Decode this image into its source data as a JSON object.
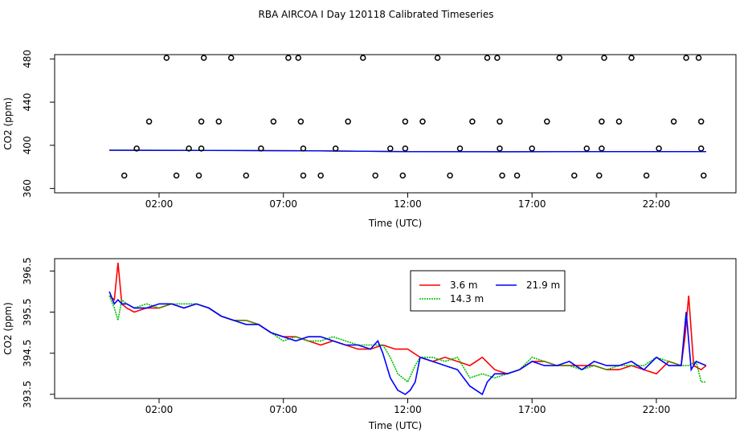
{
  "title": "RBA AIRCOA I  Day 120118  Calibrated Timeseries",
  "chart_data": [
    {
      "type": "scatter",
      "name": "top-panel",
      "xlabel": "Time (UTC)",
      "ylabel": "CO2 (ppm)",
      "xlim": [
        -2.2,
        25.2
      ],
      "ylim": [
        356.0,
        484.0
      ],
      "xticks": [
        2,
        7,
        12,
        17,
        22
      ],
      "xtick_labels": [
        "02:00",
        "07:00",
        "12:00",
        "17:00",
        "22:00"
      ],
      "yticks": [
        360,
        400,
        440,
        480
      ],
      "ytick_labels": [
        "360",
        "400",
        "440",
        "480"
      ],
      "points": {
        "name": "flagged points",
        "x": [
          0.6,
          1.1,
          1.6,
          2.3,
          2.7,
          3.2,
          3.6,
          3.7,
          3.7,
          3.8,
          4.4,
          4.9,
          5.5,
          6.1,
          6.6,
          7.2,
          7.6,
          7.7,
          7.8,
          7.8,
          8.5,
          9.1,
          9.6,
          10.2,
          10.7,
          11.3,
          11.8,
          11.9,
          11.9,
          12.6,
          13.2,
          13.7,
          14.1,
          14.6,
          15.2,
          15.6,
          15.7,
          15.7,
          15.8,
          16.4,
          17.0,
          17.6,
          18.1,
          18.7,
          19.2,
          19.7,
          19.8,
          19.8,
          19.9,
          20.5,
          21.0,
          21.6,
          22.1,
          22.7,
          23.2,
          23.7,
          23.8,
          23.8,
          23.9
        ],
        "y": [
          372,
          397,
          422,
          481,
          372,
          397,
          372,
          397,
          422,
          481,
          422,
          481,
          372,
          397,
          422,
          481,
          481,
          422,
          397,
          372,
          372,
          397,
          422,
          481,
          372,
          397,
          372,
          397,
          422,
          422,
          481,
          372,
          397,
          422,
          481,
          481,
          422,
          397,
          372,
          372,
          397,
          422,
          481,
          372,
          397,
          372,
          397,
          422,
          481,
          422,
          481,
          372,
          397,
          422,
          481,
          481,
          422,
          397,
          372
        ]
      },
      "series": [
        {
          "name": "3.6 m",
          "color": "#ff0000",
          "x": [
            0.0,
            4.0,
            8.0,
            12.0,
            16.0,
            20.0,
            24.0
          ],
          "values": [
            395.5,
            395.3,
            394.9,
            394.2,
            394.1,
            394.2,
            394.1
          ]
        },
        {
          "name": "14.3 m",
          "color": "#00c000",
          "x": [
            0.0,
            4.0,
            8.0,
            12.0,
            16.0,
            20.0,
            24.0
          ],
          "values": [
            395.5,
            395.3,
            394.9,
            394.2,
            394.0,
            394.2,
            394.1
          ]
        },
        {
          "name": "21.9 m",
          "color": "#0000ff",
          "x": [
            0.0,
            4.0,
            8.0,
            12.0,
            16.0,
            20.0,
            24.0
          ],
          "values": [
            395.4,
            395.2,
            394.9,
            394.1,
            394.0,
            394.2,
            394.2
          ]
        }
      ]
    },
    {
      "type": "line",
      "name": "bottom-panel",
      "xlabel": "Time (UTC)",
      "ylabel": "CO2 (ppm)",
      "xlim": [
        -2.2,
        25.2
      ],
      "ylim": [
        393.4,
        396.8
      ],
      "xticks": [
        2,
        7,
        12,
        17,
        22
      ],
      "xtick_labels": [
        "02:00",
        "07:00",
        "12:00",
        "17:00",
        "22:00"
      ],
      "yticks": [
        393.5,
        394.5,
        395.5,
        396.5
      ],
      "ytick_labels": [
        "393.5",
        "394.5",
        "395.5",
        "396.5"
      ],
      "legend": {
        "position": "top-center",
        "entries": [
          "3.6 m",
          "21.9 m",
          "14.3 m"
        ]
      },
      "series": [
        {
          "name": "3.6 m",
          "color": "#ff0000",
          "x": [
            0.0,
            0.2,
            0.35,
            0.5,
            0.7,
            1.0,
            1.5,
            2.0,
            2.5,
            3.0,
            3.5,
            4.0,
            4.5,
            5.0,
            5.5,
            6.0,
            6.5,
            7.0,
            7.5,
            8.0,
            8.5,
            9.0,
            9.5,
            10.0,
            10.5,
            11.0,
            11.5,
            12.0,
            12.5,
            13.0,
            13.5,
            14.0,
            14.5,
            15.0,
            15.5,
            16.0,
            16.5,
            17.0,
            17.5,
            18.0,
            18.5,
            19.0,
            19.5,
            20.0,
            20.5,
            21.0,
            21.5,
            22.0,
            22.5,
            23.0,
            23.15,
            23.3,
            23.5,
            23.8,
            24.0
          ],
          "values": [
            395.9,
            395.8,
            396.7,
            395.7,
            395.6,
            395.5,
            395.6,
            395.6,
            395.7,
            395.6,
            395.7,
            395.6,
            395.4,
            395.3,
            395.3,
            395.2,
            395.0,
            394.9,
            394.9,
            394.8,
            394.7,
            394.8,
            394.7,
            394.6,
            394.6,
            394.7,
            394.6,
            394.6,
            394.4,
            394.3,
            394.4,
            394.3,
            394.2,
            394.4,
            394.1,
            394.0,
            394.1,
            394.3,
            394.3,
            394.2,
            394.2,
            394.2,
            394.2,
            394.1,
            394.1,
            394.2,
            394.1,
            394.0,
            394.3,
            394.2,
            394.9,
            395.9,
            394.2,
            394.1,
            394.2
          ]
        },
        {
          "name": "14.3 m",
          "color": "#00c000",
          "x": [
            0.0,
            0.2,
            0.35,
            0.5,
            0.7,
            1.0,
            1.5,
            2.0,
            2.5,
            3.0,
            3.5,
            4.0,
            4.5,
            5.0,
            5.5,
            6.0,
            6.5,
            7.0,
            7.5,
            8.0,
            8.5,
            9.0,
            9.5,
            10.0,
            10.5,
            11.0,
            11.3,
            11.6,
            11.8,
            12.0,
            12.3,
            12.5,
            13.0,
            13.5,
            14.0,
            14.5,
            15.0,
            15.5,
            16.0,
            16.5,
            17.0,
            17.5,
            18.0,
            18.5,
            19.0,
            19.5,
            20.0,
            20.5,
            21.0,
            21.5,
            22.0,
            22.5,
            23.0,
            23.3,
            23.6,
            23.8,
            24.0
          ],
          "values": [
            395.9,
            395.6,
            395.3,
            395.8,
            395.7,
            395.6,
            395.7,
            395.6,
            395.7,
            395.7,
            395.7,
            395.6,
            395.4,
            395.3,
            395.3,
            395.2,
            395.0,
            394.8,
            394.9,
            394.8,
            394.8,
            394.9,
            394.8,
            394.7,
            394.7,
            394.7,
            394.4,
            394.0,
            393.9,
            393.8,
            394.2,
            394.4,
            394.4,
            394.3,
            394.4,
            393.9,
            394.0,
            393.9,
            394.0,
            394.1,
            394.4,
            394.3,
            394.2,
            394.2,
            394.1,
            394.2,
            394.1,
            394.2,
            394.2,
            394.2,
            394.4,
            394.3,
            394.2,
            394.2,
            394.3,
            393.8,
            393.8
          ]
        },
        {
          "name": "21.9 m",
          "color": "#0000ff",
          "x": [
            0.0,
            0.2,
            0.35,
            0.5,
            0.7,
            1.0,
            1.5,
            2.0,
            2.5,
            3.0,
            3.5,
            4.0,
            4.5,
            5.0,
            5.5,
            6.0,
            6.5,
            7.0,
            7.5,
            8.0,
            8.5,
            9.0,
            9.5,
            10.0,
            10.5,
            10.8,
            11.0,
            11.3,
            11.6,
            11.9,
            12.1,
            12.3,
            12.5,
            13.0,
            13.5,
            14.0,
            14.5,
            15.0,
            15.2,
            15.5,
            16.0,
            16.5,
            17.0,
            17.5,
            18.0,
            18.5,
            19.0,
            19.5,
            20.0,
            20.5,
            21.0,
            21.5,
            22.0,
            22.5,
            23.0,
            23.2,
            23.4,
            23.6,
            24.0
          ],
          "values": [
            396.0,
            395.7,
            395.8,
            395.7,
            395.7,
            395.6,
            395.6,
            395.7,
            395.7,
            395.6,
            395.7,
            395.6,
            395.4,
            395.3,
            395.2,
            395.2,
            395.0,
            394.9,
            394.8,
            394.9,
            394.9,
            394.8,
            394.7,
            394.7,
            394.6,
            394.8,
            394.5,
            393.9,
            393.6,
            393.5,
            393.6,
            393.8,
            394.4,
            394.3,
            394.2,
            394.1,
            393.7,
            393.5,
            393.8,
            394.0,
            394.0,
            394.1,
            394.3,
            394.2,
            394.2,
            394.3,
            394.1,
            394.3,
            394.2,
            394.2,
            394.3,
            394.1,
            394.4,
            394.2,
            394.2,
            395.5,
            394.1,
            394.3,
            394.2
          ]
        }
      ]
    }
  ]
}
